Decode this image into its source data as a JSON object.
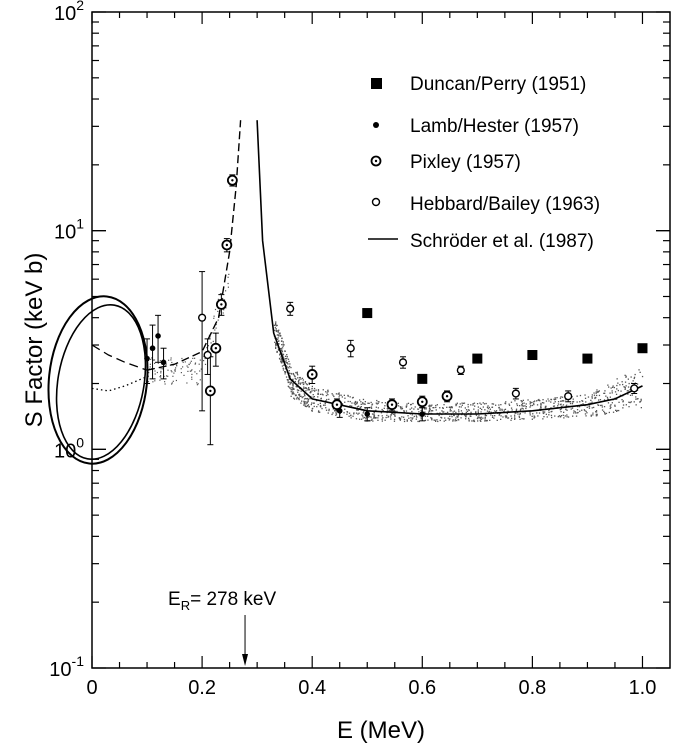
{
  "chart_data": {
    "type": "scatter",
    "title": "",
    "xlabel": "E  (MeV)",
    "ylabel": "S Factor (keV   b)",
    "xscale": "linear",
    "yscale": "log",
    "xlim": [
      0,
      1.05
    ],
    "ylim": [
      0.1,
      100
    ],
    "grid": false,
    "legend_position": "top-right",
    "x_ticks": [
      {
        "value": 0,
        "label": "0"
      },
      {
        "value": 0.2,
        "label": "0.2"
      },
      {
        "value": 0.4,
        "label": "0.4"
      },
      {
        "value": 0.6,
        "label": "0.6"
      },
      {
        "value": 0.8,
        "label": "0.8"
      },
      {
        "value": 1.0,
        "label": "1.0"
      }
    ],
    "y_ticks": [
      {
        "value": 0.1,
        "base": "10",
        "exp": "-1"
      },
      {
        "value": 1,
        "base": "10",
        "exp": "0"
      },
      {
        "value": 10,
        "base": "10",
        "exp": "1"
      },
      {
        "value": 100,
        "base": "10",
        "exp": "2"
      }
    ],
    "annotation": {
      "prefix": "E",
      "sub": "R",
      "text": "= 278 keV",
      "x": 0.278
    },
    "series": [
      {
        "name": "Duncan/Perry (1951)",
        "marker": "filled-square",
        "points": [
          {
            "x": 0.5,
            "y": 4.2
          },
          {
            "x": 0.6,
            "y": 2.1
          },
          {
            "x": 0.7,
            "y": 2.6
          },
          {
            "x": 0.8,
            "y": 2.7
          },
          {
            "x": 0.9,
            "y": 2.6
          },
          {
            "x": 1.0,
            "y": 2.9
          }
        ]
      },
      {
        "name": "Lamb/Hester (1957)",
        "marker": "small-dot",
        "points": [
          {
            "x": 0.1,
            "y": 2.6,
            "err": 0.6
          },
          {
            "x": 0.11,
            "y": 2.9,
            "err": 0.8
          },
          {
            "x": 0.12,
            "y": 3.3,
            "err": 0.8
          },
          {
            "x": 0.13,
            "y": 2.5,
            "err": 0.4
          },
          {
            "x": 0.45,
            "y": 1.5,
            "err": 0.1
          },
          {
            "x": 0.5,
            "y": 1.45,
            "err": 0.1
          },
          {
            "x": 0.6,
            "y": 1.45,
            "err": 0.1
          }
        ]
      },
      {
        "name": "Pixley (1957)",
        "marker": "dotted-circle",
        "points": [
          {
            "x": 0.215,
            "y": 1.85,
            "err": 0.8
          },
          {
            "x": 0.225,
            "y": 2.9,
            "err": 0.5
          },
          {
            "x": 0.235,
            "y": 4.6,
            "err": 0.5
          },
          {
            "x": 0.245,
            "y": 8.6,
            "err": 0.6
          },
          {
            "x": 0.255,
            "y": 17,
            "err": 1.0
          },
          {
            "x": 0.4,
            "y": 2.2,
            "err": 0.2
          },
          {
            "x": 0.445,
            "y": 1.6,
            "err": 0.1
          },
          {
            "x": 0.545,
            "y": 1.6,
            "err": 0.1
          },
          {
            "x": 0.6,
            "y": 1.65,
            "err": 0.1
          },
          {
            "x": 0.645,
            "y": 1.75,
            "err": 0.1
          }
        ]
      },
      {
        "name": "Hebbard/Bailey (1963)",
        "marker": "open-circle",
        "points": [
          {
            "x": 0.2,
            "y": 4.0,
            "err": 2.5
          },
          {
            "x": 0.21,
            "y": 2.7,
            "err": 0.5
          },
          {
            "x": 0.36,
            "y": 4.4,
            "err": 0.3
          },
          {
            "x": 0.47,
            "y": 2.9,
            "err": 0.25
          },
          {
            "x": 0.565,
            "y": 2.5,
            "err": 0.15
          },
          {
            "x": 0.67,
            "y": 2.3,
            "err": 0.1
          },
          {
            "x": 0.77,
            "y": 1.8,
            "err": 0.1
          },
          {
            "x": 0.865,
            "y": 1.75,
            "err": 0.1
          },
          {
            "x": 0.985,
            "y": 1.9,
            "err": 0.1
          }
        ]
      },
      {
        "name": "Schröder et al. (1987)",
        "marker": "line",
        "points": [
          {
            "x": 0.1,
            "y": 2.3
          },
          {
            "x": 0.15,
            "y": 2.45
          },
          {
            "x": 0.2,
            "y": 2.8
          },
          {
            "x": 0.23,
            "y": 4.0
          },
          {
            "x": 0.25,
            "y": 8.0
          },
          {
            "x": 0.262,
            "y": 16.0
          },
          {
            "x": 0.27,
            "y": 32.0
          },
          {
            "x": 0.3,
            "y": 32.0
          },
          {
            "x": 0.31,
            "y": 9.0
          },
          {
            "x": 0.33,
            "y": 3.4
          },
          {
            "x": 0.36,
            "y": 2.1
          },
          {
            "x": 0.4,
            "y": 1.7
          },
          {
            "x": 0.5,
            "y": 1.5
          },
          {
            "x": 0.6,
            "y": 1.45
          },
          {
            "x": 0.7,
            "y": 1.45
          },
          {
            "x": 0.8,
            "y": 1.5
          },
          {
            "x": 0.9,
            "y": 1.6
          },
          {
            "x": 0.95,
            "y": 1.7
          },
          {
            "x": 1.0,
            "y": 1.95
          }
        ]
      }
    ],
    "extrapolations": [
      {
        "style": "dashed",
        "points": [
          {
            "x": 0,
            "y": 3.0
          },
          {
            "x": 0.03,
            "y": 2.7
          },
          {
            "x": 0.06,
            "y": 2.5
          },
          {
            "x": 0.1,
            "y": 2.3
          }
        ]
      },
      {
        "style": "dotted",
        "points": [
          {
            "x": 0,
            "y": 1.9
          },
          {
            "x": 0.03,
            "y": 1.85
          },
          {
            "x": 0.06,
            "y": 1.95
          },
          {
            "x": 0.1,
            "y": 2.15
          }
        ]
      }
    ],
    "uncertainty_band": [
      {
        "x": 0.33,
        "low": 3.0,
        "high": 4.0
      },
      {
        "x": 0.36,
        "low": 1.75,
        "high": 2.4
      },
      {
        "x": 0.4,
        "low": 1.5,
        "high": 1.95
      },
      {
        "x": 0.5,
        "low": 1.35,
        "high": 1.7
      },
      {
        "x": 0.6,
        "low": 1.35,
        "high": 1.62
      },
      {
        "x": 0.7,
        "low": 1.35,
        "high": 1.65
      },
      {
        "x": 0.8,
        "low": 1.38,
        "high": 1.7
      },
      {
        "x": 0.9,
        "low": 1.42,
        "high": 1.8
      },
      {
        "x": 1.0,
        "low": 1.5,
        "high": 2.4
      }
    ],
    "colors": {
      "ink": "#000000",
      "band": "#555555",
      "background": "#ffffff"
    }
  }
}
